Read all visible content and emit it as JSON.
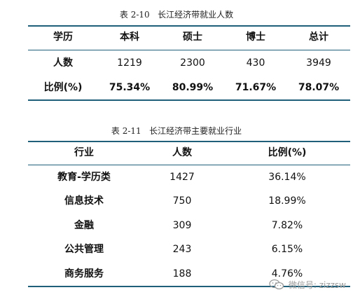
{
  "table1": {
    "caption": "表 2-10   长江经济带就业人数",
    "headers": [
      "学历",
      "本科",
      "硕士",
      "博士",
      "总计"
    ],
    "rows": [
      {
        "label": "人数",
        "values": [
          "1219",
          "2300",
          "430",
          "3949"
        ]
      },
      {
        "label": "比例(%)",
        "values": [
          "75.34%",
          "80.99%",
          "71.67%",
          "78.07%"
        ]
      }
    ]
  },
  "table2": {
    "caption": "表 2-11   长江经济带主要就业行业",
    "headers": [
      "行业",
      "人数",
      "比例(%)"
    ],
    "rows": [
      {
        "industry": "教育-学历类",
        "count": "1427",
        "ratio": "36.14%"
      },
      {
        "industry": "信息技术",
        "count": "750",
        "ratio": "18.99%"
      },
      {
        "industry": "金融",
        "count": "309",
        "ratio": "7.82%"
      },
      {
        "industry": "公共管理",
        "count": "243",
        "ratio": "6.15%"
      },
      {
        "industry": "商务服务",
        "count": "188",
        "ratio": "4.76%"
      }
    ]
  },
  "watermark": {
    "text": "微信号: zizzsw",
    "icon": "wechat-icon"
  },
  "colors": {
    "rule": "#1f5f7a",
    "watermark": "#9a9a9a"
  }
}
